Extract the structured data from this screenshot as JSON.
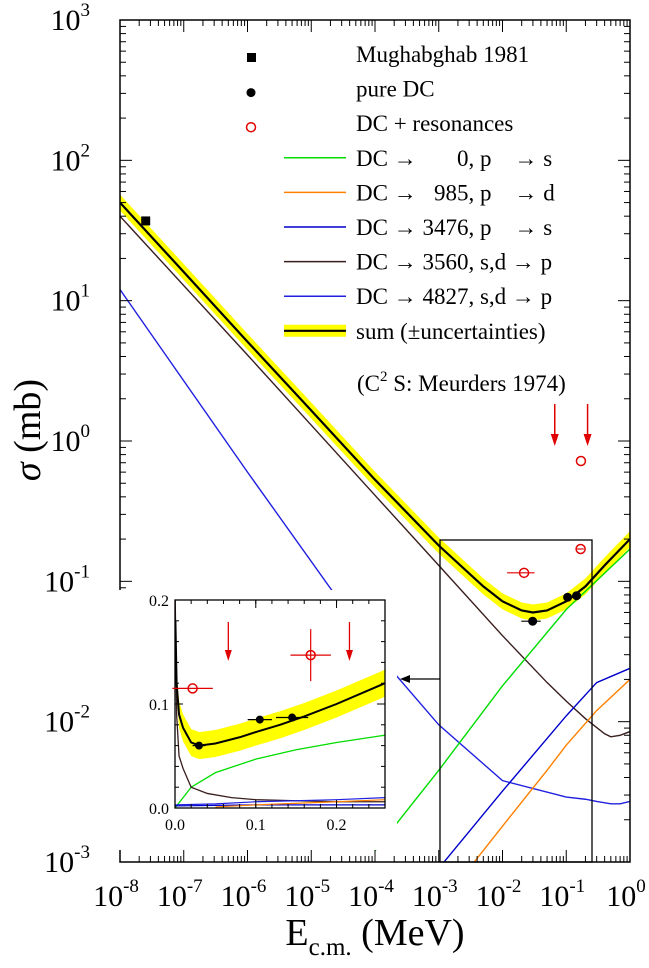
{
  "chart_data": {
    "type": "line",
    "xlabel_main": "E",
    "xlabel_sub": "c.m.",
    "xlabel_unit": " (MeV)",
    "ylabel_sym": "σ",
    "ylabel_unit": " (mb)",
    "x_scale": "log",
    "y_scale": "log",
    "xlim": [
      1e-08,
      1
    ],
    "ylim": [
      0.001,
      1000
    ],
    "x_ticks": [
      {
        "v": 1e-08,
        "base": "10",
        "exp": "-8"
      },
      {
        "v": 1e-07,
        "base": "10",
        "exp": "-7"
      },
      {
        "v": 1e-06,
        "base": "10",
        "exp": "-6"
      },
      {
        "v": 1e-05,
        "base": "10",
        "exp": "-5"
      },
      {
        "v": 0.0001,
        "base": "10",
        "exp": "-4"
      },
      {
        "v": 0.001,
        "base": "10",
        "exp": "-3"
      },
      {
        "v": 0.01,
        "base": "10",
        "exp": "-2"
      },
      {
        "v": 0.1,
        "base": "10",
        "exp": "-1"
      },
      {
        "v": 1,
        "base": "10",
        "exp": "0"
      }
    ],
    "y_ticks": [
      {
        "v": 0.001,
        "base": "10",
        "exp": "-3"
      },
      {
        "v": 0.01,
        "base": "10",
        "exp": "-2"
      },
      {
        "v": 0.1,
        "base": "10",
        "exp": "-1"
      },
      {
        "v": 1,
        "base": "10",
        "exp": "0"
      },
      {
        "v": 10,
        "base": "10",
        "exp": "1"
      },
      {
        "v": 100,
        "base": "10",
        "exp": "2"
      },
      {
        "v": 1000,
        "base": "10",
        "exp": "3"
      }
    ],
    "legend_position": "top-right",
    "legend": [
      {
        "key": "mughabghab",
        "label": "Mughabghab 1981",
        "marker": "square",
        "color": "#000000"
      },
      {
        "key": "pure_dc",
        "label": "pure DC",
        "marker": "circle",
        "color": "#000000"
      },
      {
        "key": "dc_res",
        "label": "DC + resonances",
        "marker": "open-circle",
        "color": "#e00000"
      },
      {
        "key": "c0",
        "label": "DC →       0, p    → s",
        "line": "#00dd00"
      },
      {
        "key": "c985",
        "label": "DC →   985, p    → d",
        "line": "#ff8000"
      },
      {
        "key": "c3476",
        "label": "DC → 3476, p    → s",
        "line": "#0000cc"
      },
      {
        "key": "c3560",
        "label": "DC → 3560, s,d → p",
        "line": "#3a1e1e"
      },
      {
        "key": "c4827",
        "label": "DC → 4827, s,d → p",
        "line": "#2020e0"
      },
      {
        "key": "sum",
        "label": "sum (±uncertainties)",
        "line": "#000000",
        "band": "#ffff00"
      }
    ],
    "note_text": "(C",
    "note_sup": "2",
    "note_rest": " S: Meurders 1974)",
    "series": [
      {
        "name": "sum (±uncertainties)",
        "color": "#000000",
        "x": [
          1e-08,
          1e-07,
          1e-06,
          1e-05,
          0.0001,
          0.001,
          0.005,
          0.01,
          0.02,
          0.03,
          0.05,
          0.1,
          0.2,
          0.4,
          1
        ],
        "y": [
          50,
          16,
          5.1,
          1.65,
          0.53,
          0.18,
          0.092,
          0.072,
          0.062,
          0.06,
          0.062,
          0.072,
          0.092,
          0.13,
          0.2
        ],
        "band_factor": 1.14
      },
      {
        "name": "DC → 3560, s,d → p",
        "color": "#3a1e1e",
        "x": [
          1e-08,
          1e-06,
          0.0001,
          0.001,
          0.01,
          0.05,
          0.1,
          0.2,
          0.4,
          0.5,
          0.7,
          1
        ],
        "y": [
          40,
          4.1,
          0.41,
          0.13,
          0.041,
          0.019,
          0.014,
          0.0105,
          0.0082,
          0.0078,
          0.008,
          0.0085
        ]
      },
      {
        "name": "DC → 4827, s,d → p",
        "color": "#2020e0",
        "x": [
          1e-08,
          1e-06,
          0.0001,
          0.001,
          0.01,
          0.1,
          0.2,
          0.3,
          0.5,
          0.7,
          1
        ],
        "y": [
          12,
          0.6,
          0.032,
          0.0095,
          0.0038,
          0.0029,
          0.0028,
          0.0027,
          0.0026,
          0.0026,
          0.0027
        ]
      },
      {
        "name": "DC →       0, p    → s",
        "color": "#00dd00",
        "x": [
          0.0001,
          0.001,
          0.01,
          0.1,
          1
        ],
        "y": [
          0.0012,
          0.0045,
          0.018,
          0.063,
          0.17
        ]
      },
      {
        "name": "DC → 3476, p    → s",
        "color": "#0000cc",
        "x": [
          0.001,
          0.01,
          0.1,
          0.3,
          1
        ],
        "y": [
          0.0009,
          0.0032,
          0.011,
          0.019,
          0.024
        ]
      },
      {
        "name": "DC →   985, p    → d",
        "color": "#ff8000",
        "x": [
          0.003,
          0.01,
          0.05,
          0.1,
          0.3,
          1
        ],
        "y": [
          0.0009,
          0.0018,
          0.0045,
          0.0068,
          0.012,
          0.02
        ]
      }
    ],
    "points": {
      "mughabghab": [
        {
          "x": 2.53e-08,
          "y": 37
        }
      ],
      "pure_dc": [
        {
          "x": 0.0297,
          "y": 0.052,
          "xerr": [
            0.01,
            0.01
          ]
        },
        {
          "x": 0.105,
          "y": 0.077,
          "xerr": [
            0.015,
            0.015
          ]
        },
        {
          "x": 0.145,
          "y": 0.079,
          "xerr": [
            0.02,
            0.02
          ]
        }
      ],
      "dc_res": [
        {
          "x": 0.0218,
          "y": 0.115,
          "xerr": [
            0.01,
            0.01
          ]
        },
        {
          "x": 0.168,
          "y": 0.17,
          "xerr": [
            0.02,
            0.02
          ]
        },
        {
          "x": 0.17,
          "y": 0.72
        }
      ]
    },
    "arrows_x": [
      0.066,
      0.216
    ],
    "inset": {
      "xlim": [
        0,
        0.26
      ],
      "ylim": [
        0,
        0.2
      ],
      "x_ticks": [
        {
          "v": 0,
          "label": "0.0"
        },
        {
          "v": 0.1,
          "label": "0.1"
        },
        {
          "v": 0.2,
          "label": "0.2"
        }
      ],
      "y_ticks": [
        {
          "v": 0,
          "label": "0.0"
        },
        {
          "v": 0.1,
          "label": "0.1"
        },
        {
          "v": 0.2,
          "label": "0.2"
        }
      ],
      "sum": {
        "x": [
          0.0005,
          0.002,
          0.005,
          0.01,
          0.02,
          0.03,
          0.05,
          0.08,
          0.1,
          0.13,
          0.16,
          0.2,
          0.26
        ],
        "y": [
          0.18,
          0.12,
          0.09,
          0.077,
          0.063,
          0.06,
          0.062,
          0.068,
          0.073,
          0.08,
          0.088,
          0.1,
          0.12
        ],
        "band": 0.013
      },
      "green": {
        "x": [
          0,
          0.02,
          0.05,
          0.1,
          0.15,
          0.2,
          0.26
        ],
        "y": [
          0,
          0.02,
          0.034,
          0.047,
          0.056,
          0.063,
          0.07
        ]
      },
      "brown": {
        "x": [
          0.0003,
          0.002,
          0.005,
          0.01,
          0.02,
          0.04,
          0.07,
          0.1,
          0.15,
          0.2,
          0.26
        ],
        "y": [
          0.2,
          0.09,
          0.05,
          0.038,
          0.02,
          0.014,
          0.01,
          0.008,
          0.007,
          0.006,
          0.006
        ]
      },
      "blue": {
        "x": [
          0,
          0.05,
          0.1,
          0.2,
          0.26
        ],
        "y": [
          0.003,
          0.004,
          0.006,
          0.008,
          0.01
        ]
      },
      "blue2": {
        "x": [
          0,
          0.05,
          0.1,
          0.2,
          0.26
        ],
        "y": [
          0.002,
          0.0025,
          0.003,
          0.003,
          0.003
        ]
      },
      "orange": {
        "x": [
          0.05,
          0.1,
          0.2,
          0.26
        ],
        "y": [
          0.001,
          0.003,
          0.006,
          0.008
        ]
      },
      "pure_dc": [
        {
          "x": 0.0297,
          "y": 0.06,
          "xerr": 0.008
        },
        {
          "x": 0.105,
          "y": 0.085,
          "xerr": 0.015
        },
        {
          "x": 0.145,
          "y": 0.087,
          "xerr": 0.02
        }
      ],
      "dc_res": [
        {
          "x": 0.0218,
          "y": 0.115,
          "xerr": 0.025
        },
        {
          "x": 0.168,
          "y": 0.147,
          "xerr": 0.025,
          "yerr": 0.025
        }
      ]
    }
  }
}
